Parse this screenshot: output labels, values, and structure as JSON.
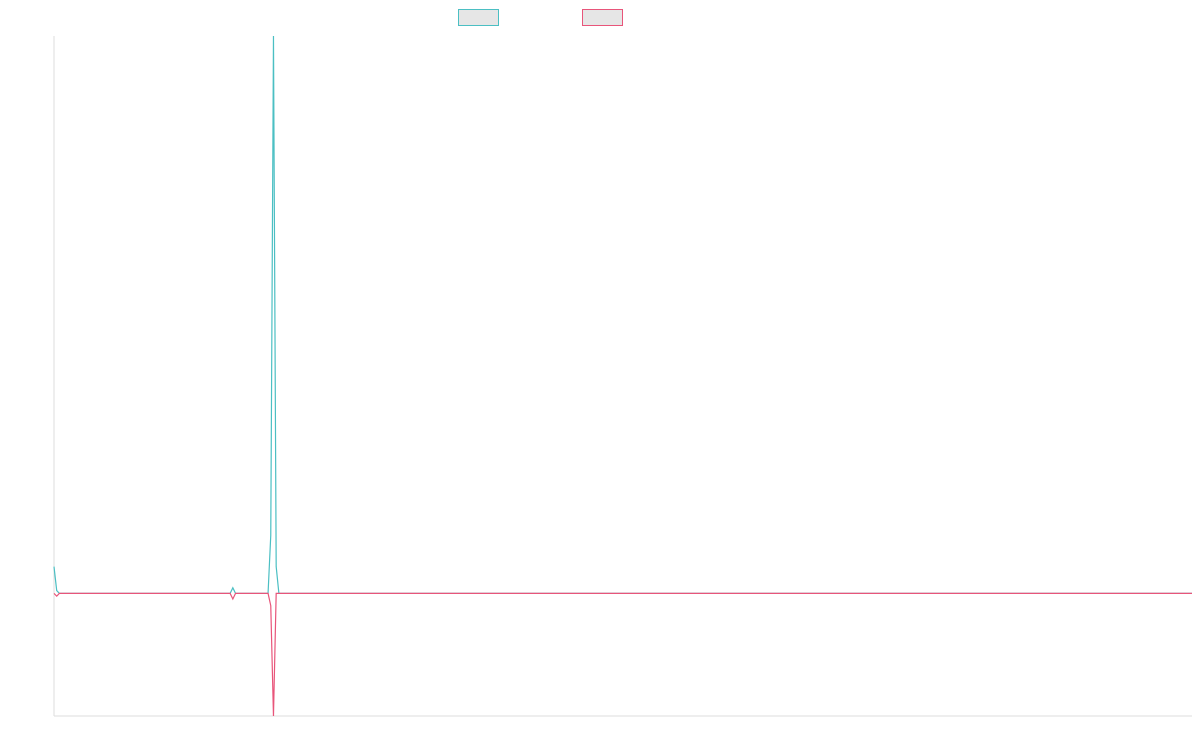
{
  "chart_data": {
    "type": "line",
    "x": [
      0,
      1,
      2,
      65,
      66,
      67,
      79,
      80,
      81,
      82,
      83,
      420
    ],
    "series": [
      {
        "color": "#4bbfc3",
        "values": [
          4.8,
          0.5,
          0,
          0,
          1,
          0,
          0,
          10.4,
          100,
          4.8,
          0,
          0
        ]
      },
      {
        "color": "#e8557a",
        "values": [
          0,
          -0.5,
          0,
          0,
          -1,
          0,
          0,
          -2.2,
          -22,
          0,
          0,
          0
        ]
      }
    ],
    "xlim": [
      0,
      420
    ],
    "ylim": [
      -22,
      100
    ],
    "legend": "top"
  }
}
